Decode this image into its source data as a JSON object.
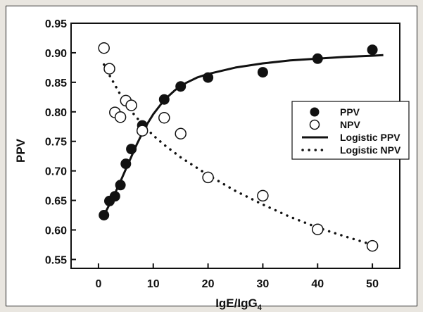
{
  "chart_data": {
    "type": "scatter",
    "title": "",
    "xlabel": "IgE/IgG",
    "xlabel_subscript": "4",
    "ylabel": "PPV",
    "xlim": [
      -5,
      55
    ],
    "ylim": [
      0.535,
      0.95
    ],
    "x_ticks": [
      0,
      10,
      20,
      30,
      40,
      50
    ],
    "y_ticks": [
      0.55,
      0.6,
      0.65,
      0.7,
      0.75,
      0.8,
      0.85,
      0.9,
      0.95
    ],
    "y_tick_labels": [
      "0.55",
      "0.60",
      "0.65",
      "0.70",
      "0.75",
      "0.80",
      "0.85",
      "0.90",
      "0.95"
    ],
    "grid": false,
    "legend_position": "right",
    "series": [
      {
        "name": "PPV",
        "marker": "filled-circle",
        "color": "#111111",
        "x": [
          1,
          2,
          3,
          4,
          5,
          6,
          8,
          12,
          15,
          20,
          30,
          40,
          50
        ],
        "y": [
          0.625,
          0.649,
          0.657,
          0.676,
          0.712,
          0.737,
          0.777,
          0.821,
          0.843,
          0.858,
          0.867,
          0.89,
          0.905
        ]
      },
      {
        "name": "NPV",
        "marker": "open-circle",
        "color": "#111111",
        "x": [
          1,
          2,
          3,
          4,
          5,
          6,
          8,
          12,
          15,
          20,
          30,
          40,
          50
        ],
        "y": [
          0.908,
          0.873,
          0.799,
          0.791,
          0.819,
          0.811,
          0.768,
          0.79,
          0.763,
          0.689,
          0.658,
          0.601,
          0.573
        ]
      },
      {
        "name": "Logistic PPV",
        "line": "solid",
        "color": "#111111",
        "x": [
          1,
          1.5,
          2,
          3,
          4,
          5,
          6,
          7,
          8,
          9,
          10,
          12,
          14,
          16,
          18,
          20,
          25,
          30,
          35,
          40,
          45,
          50,
          52
        ],
        "y": [
          0.625,
          0.634,
          0.643,
          0.662,
          0.682,
          0.703,
          0.724,
          0.745,
          0.764,
          0.781,
          0.796,
          0.82,
          0.837,
          0.849,
          0.858,
          0.864,
          0.875,
          0.882,
          0.887,
          0.89,
          0.893,
          0.895,
          0.896
        ]
      },
      {
        "name": "Logistic NPV",
        "line": "dotted",
        "color": "#111111",
        "x": [
          1,
          2,
          4,
          6,
          8,
          10,
          12,
          15,
          20,
          25,
          30,
          35,
          40,
          45,
          50
        ],
        "y": [
          0.88,
          0.862,
          0.829,
          0.801,
          0.779,
          0.76,
          0.744,
          0.723,
          0.693,
          0.666,
          0.643,
          0.622,
          0.604,
          0.589,
          0.575
        ]
      }
    ]
  }
}
